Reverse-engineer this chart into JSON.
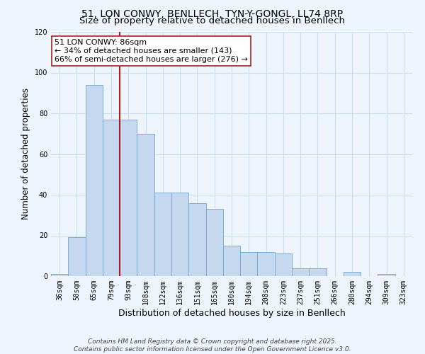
{
  "title": "51, LON CONWY, BENLLECH, TYN-Y-GONGL, LL74 8RP",
  "subtitle": "Size of property relative to detached houses in Benllech",
  "xlabel": "Distribution of detached houses by size in Benllech",
  "ylabel": "Number of detached properties",
  "bar_labels": [
    "36sqm",
    "50sqm",
    "65sqm",
    "79sqm",
    "93sqm",
    "108sqm",
    "122sqm",
    "136sqm",
    "151sqm",
    "165sqm",
    "180sqm",
    "194sqm",
    "208sqm",
    "223sqm",
    "237sqm",
    "251sqm",
    "266sqm",
    "280sqm",
    "294sqm",
    "309sqm",
    "323sqm"
  ],
  "bar_values": [
    1,
    19,
    94,
    77,
    77,
    70,
    41,
    41,
    36,
    33,
    15,
    12,
    12,
    11,
    4,
    4,
    0,
    2,
    0,
    1,
    0
  ],
  "bar_color": "#c5d8f0",
  "bar_edge_color": "#7aafd4",
  "grid_color": "#c8dff0",
  "bg_color": "#eef4fb",
  "vline_x_index": 3,
  "vline_color": "#aa2020",
  "annotation_title": "51 LON CONWY: 86sqm",
  "annotation_line1": "← 34% of detached houses are smaller (143)",
  "annotation_line2": "66% of semi-detached houses are larger (276) →",
  "annotation_box_color": "#ffffff",
  "annotation_box_edge": "#aa2020",
  "ylim": [
    0,
    120
  ],
  "yticks": [
    0,
    20,
    40,
    60,
    80,
    100,
    120
  ],
  "footnote1": "Contains HM Land Registry data © Crown copyright and database right 2025.",
  "footnote2": "Contains public sector information licensed under the Open Government Licence v3.0.",
  "title_fontsize": 10,
  "subtitle_fontsize": 9.5,
  "xlabel_fontsize": 9,
  "ylabel_fontsize": 8.5,
  "tick_fontsize": 7,
  "annotation_fontsize": 8,
  "footnote_fontsize": 6.5
}
